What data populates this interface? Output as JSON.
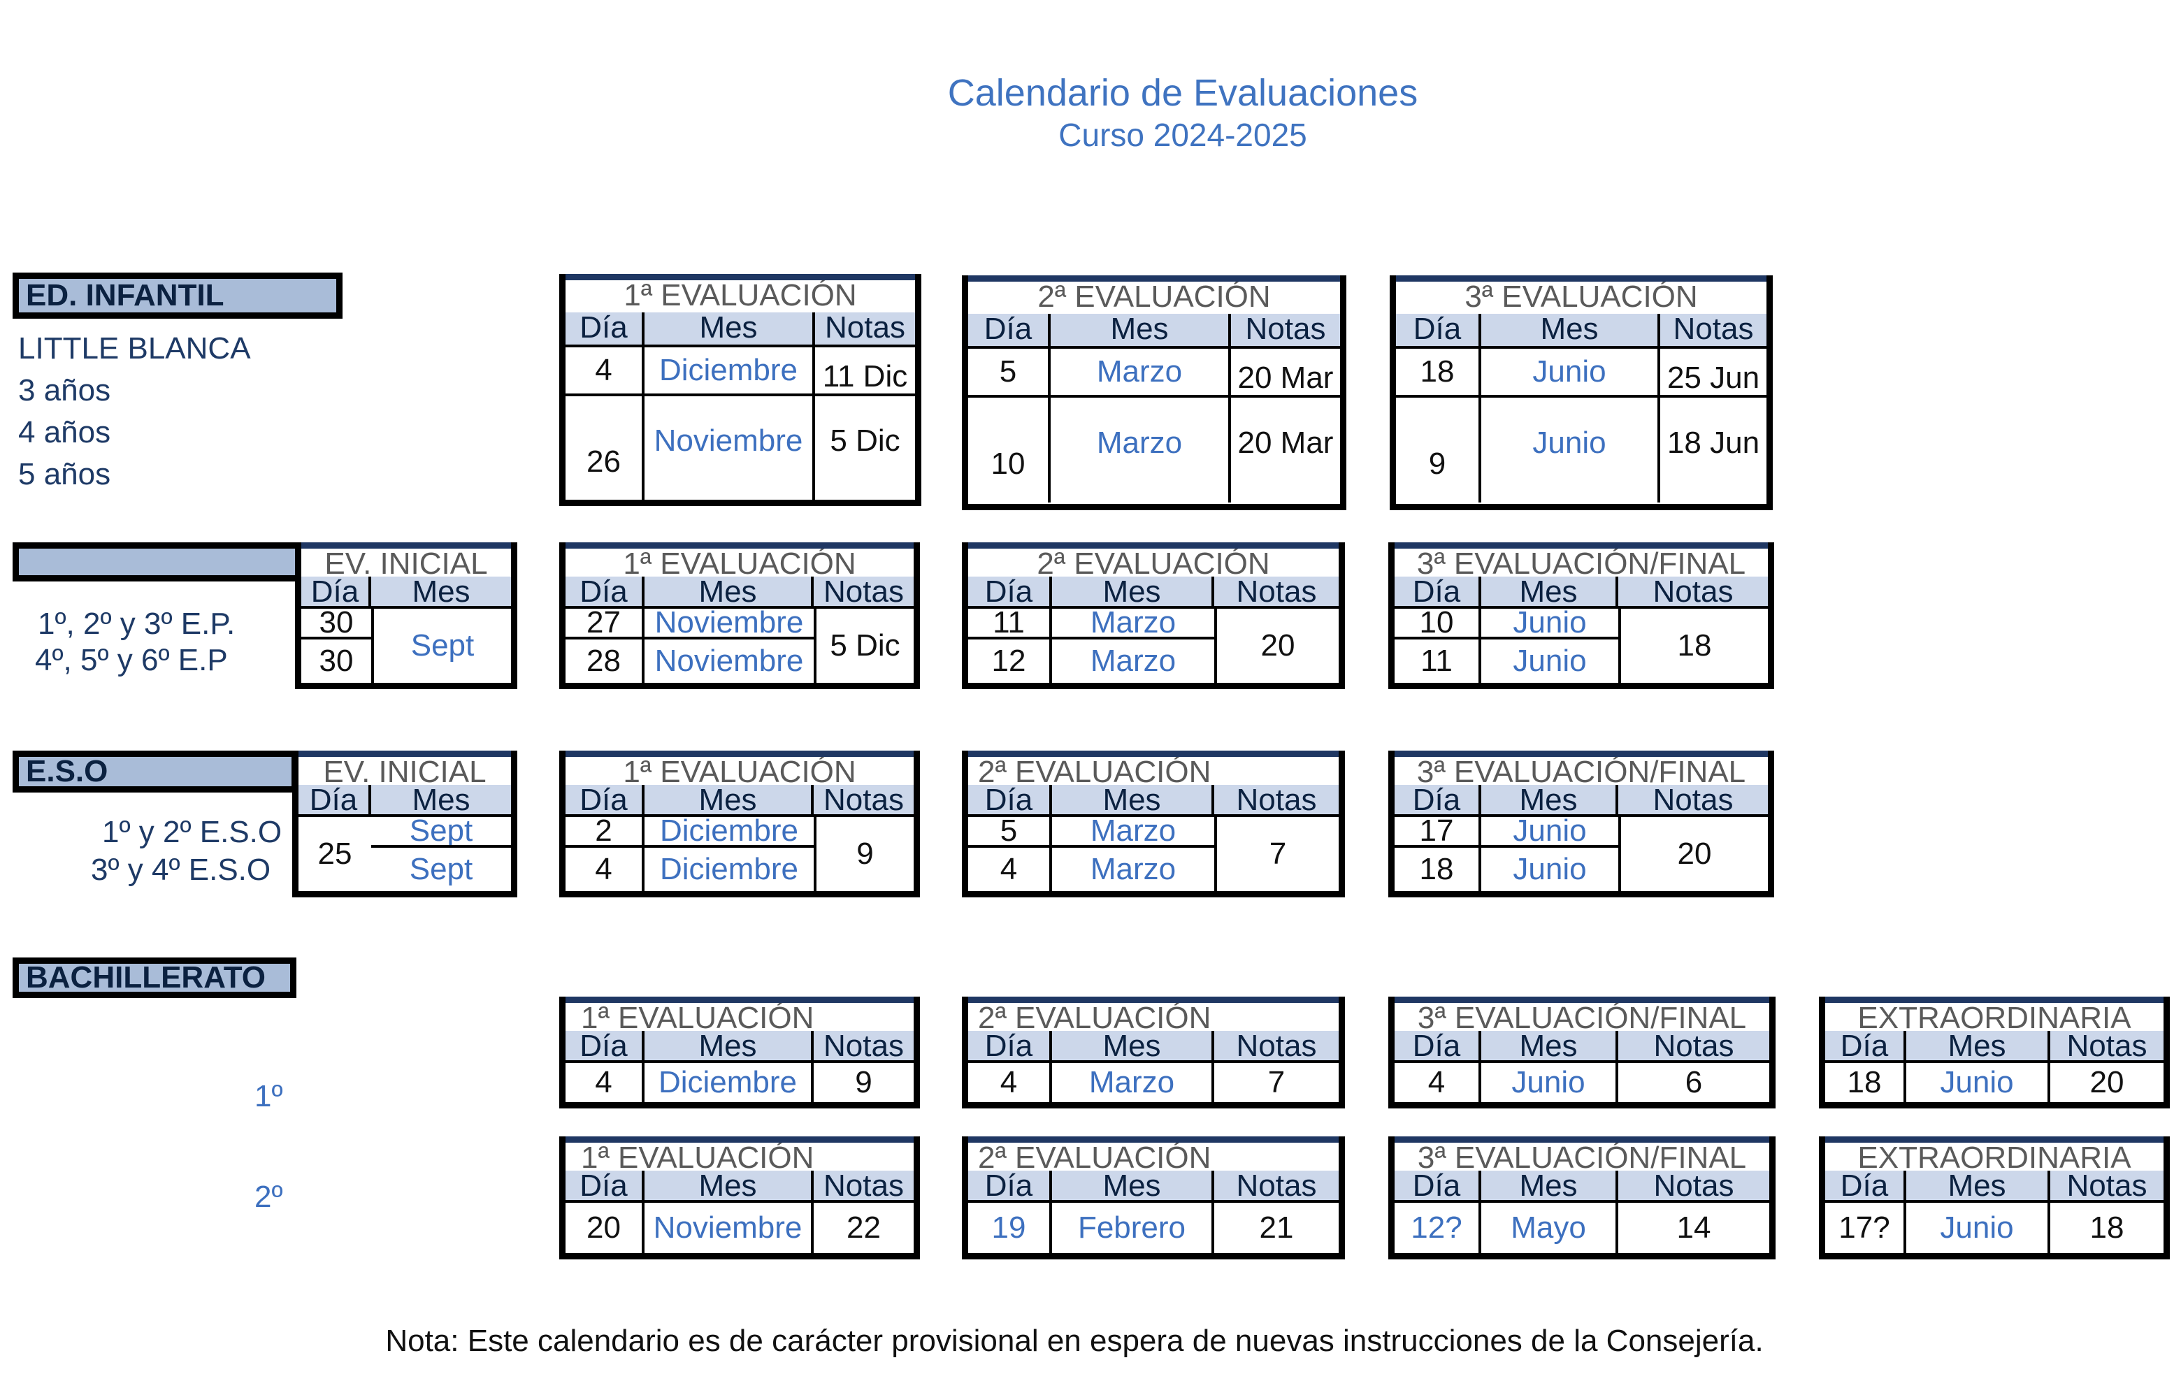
{
  "title": "Calendario de Evaluaciones",
  "subtitle": "Curso 2024-2025",
  "headers": {
    "dia": "Día",
    "mes": "Mes",
    "notas": "Notas"
  },
  "infantil": {
    "label": "ED. INFANTIL",
    "school": "LITTLE BLANCA",
    "levels": [
      "3 años",
      "4 años",
      "5 años"
    ],
    "ev1": {
      "title": "1ª EVALUACIÓN",
      "rows": [
        {
          "dia": "4",
          "mes": "Diciembre",
          "notas": "11 Dic"
        },
        {
          "dia": "26",
          "mes": "Noviembre",
          "notas": "5 Dic"
        }
      ]
    },
    "ev2": {
      "title": "2ª EVALUACIÓN",
      "rows": [
        {
          "dia": "5",
          "mes": "Marzo",
          "notas": "20 Mar"
        },
        {
          "dia": "10",
          "mes": "Marzo",
          "notas": "20 Mar"
        }
      ]
    },
    "ev3": {
      "title": "3ª EVALUACIÓN",
      "rows": [
        {
          "dia": "18",
          "mes": "Junio",
          "notas": "25 Jun"
        },
        {
          "dia": "9",
          "mes": "Junio",
          "notas": "18 Jun"
        }
      ]
    }
  },
  "primaria": {
    "label": "",
    "levels": [
      "1º, 2º y 3º E.P.",
      "4º, 5º y 6º E.P"
    ],
    "inicial": {
      "title": "EV. INICIAL",
      "rows": [
        {
          "dia": "30"
        },
        {
          "dia": "30"
        }
      ],
      "mes": "Sept"
    },
    "ev1": {
      "title": "1ª EVALUACIÓN",
      "rows": [
        {
          "dia": "27",
          "mes": "Noviembre"
        },
        {
          "dia": "28",
          "mes": "Noviembre"
        }
      ],
      "notas": "5 Dic"
    },
    "ev2": {
      "title": "2ª EVALUACIÓN",
      "rows": [
        {
          "dia": "11",
          "mes": "Marzo"
        },
        {
          "dia": "12",
          "mes": "Marzo"
        }
      ],
      "notas": "20"
    },
    "ev3": {
      "title": "3ª EVALUACIÓN/FINAL",
      "rows": [
        {
          "dia": "10",
          "mes": "Junio"
        },
        {
          "dia": "11",
          "mes": "Junio"
        }
      ],
      "notas": "18"
    }
  },
  "eso": {
    "label": "E.S.O",
    "levels": [
      "1º y 2º E.S.O",
      "3º y 4º  E.S.O"
    ],
    "inicial": {
      "title": "EV. INICIAL",
      "dia": "25",
      "rows": [
        {
          "mes": "Sept"
        },
        {
          "mes": "Sept"
        }
      ]
    },
    "ev1": {
      "title": "1ª EVALUACIÓN",
      "rows": [
        {
          "dia": "2",
          "mes": "Diciembre"
        },
        {
          "dia": "4",
          "mes": "Diciembre"
        }
      ],
      "notas": "9"
    },
    "ev2": {
      "title": "2ª EVALUACIÓN",
      "rows": [
        {
          "dia": "5",
          "mes": "Marzo"
        },
        {
          "dia": "4",
          "mes": "Marzo"
        }
      ],
      "notas": "7"
    },
    "ev3": {
      "title": "3ª EVALUACIÓN/FINAL",
      "rows": [
        {
          "dia": "17",
          "mes": "Junio"
        },
        {
          "dia": "18",
          "mes": "Junio"
        }
      ],
      "notas": "20"
    }
  },
  "bachillerato": {
    "label": "BACHILLERATO",
    "c1": {
      "label": "1º",
      "ev1": {
        "title": "1ª EVALUACIÓN",
        "dia": "4",
        "mes": "Diciembre",
        "notas": "9"
      },
      "ev2": {
        "title": "2ª EVALUACIÓN",
        "dia": "4",
        "mes": "Marzo",
        "notas": "7"
      },
      "ev3": {
        "title": "3ª EVALUACIÓN/FINAL",
        "dia": "4",
        "mes": "Junio",
        "notas": "6"
      },
      "ext": {
        "title": "EXTRAORDINARIA",
        "dia": "18",
        "mes": "Junio",
        "notas": "20"
      }
    },
    "c2": {
      "label": "2º",
      "ev1": {
        "title": "1ª EVALUACIÓN",
        "dia": "20",
        "mes": "Noviembre",
        "notas": "22"
      },
      "ev2": {
        "title": "2ª EVALUACIÓN",
        "dia": "19",
        "mes": "Febrero",
        "notas": "21"
      },
      "ev3": {
        "title": "3ª EVALUACIÓN/FINAL",
        "dia": "12?",
        "mes": "Mayo",
        "notas": "14"
      },
      "ext": {
        "title": "EXTRAORDINARIA",
        "dia": "17?",
        "mes": "Junio",
        "notas": "18"
      }
    }
  },
  "note": "Nota: Este calendario es de carácter provisional en espera de nuevas instrucciones de la Consejería."
}
